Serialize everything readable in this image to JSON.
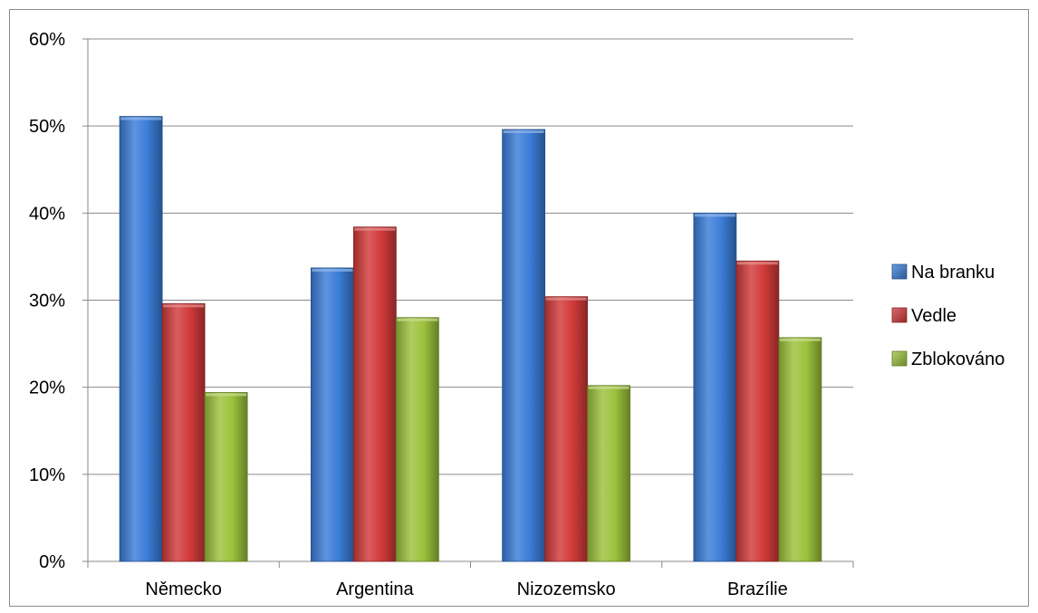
{
  "chart_data": {
    "type": "bar",
    "categories": [
      "Německo",
      "Argentina",
      "Nizozemsko",
      "Brazílie"
    ],
    "series": [
      {
        "name": "Na branku",
        "color": "#3b7dd8",
        "values": [
          51.1,
          33.7,
          49.6,
          40.0
        ]
      },
      {
        "name": "Vedle",
        "color": "#d23a3a",
        "values": [
          29.6,
          38.4,
          30.4,
          34.5
        ]
      },
      {
        "name": "Zblokováno",
        "color": "#9cc23c",
        "values": [
          19.4,
          28.0,
          20.2,
          25.7
        ]
      }
    ],
    "ylim": [
      0,
      60
    ],
    "yticks": [
      "0%",
      "10%",
      "20%",
      "30%",
      "40%",
      "50%",
      "60%"
    ],
    "ytick_values": [
      0,
      10,
      20,
      30,
      40,
      50,
      60
    ],
    "grid": true,
    "legend_position": "right",
    "title": "",
    "xlabel": "",
    "ylabel": ""
  }
}
